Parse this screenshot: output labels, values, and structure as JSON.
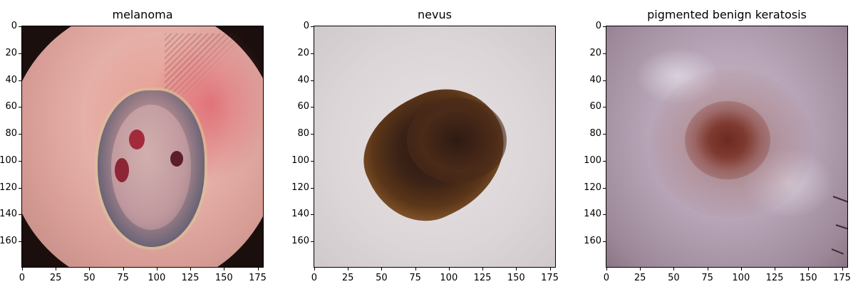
{
  "panels": [
    {
      "title": "melanoma",
      "image": "melanoma-dermoscopy-image",
      "yticks": [
        "0",
        "20",
        "40",
        "60",
        "80",
        "100",
        "120",
        "140",
        "160"
      ],
      "xticks": [
        "0",
        "25",
        "50",
        "75",
        "100",
        "125",
        "150",
        "175"
      ]
    },
    {
      "title": "nevus",
      "image": "nevus-dermoscopy-image",
      "yticks": [
        "0",
        "20",
        "40",
        "60",
        "80",
        "100",
        "120",
        "140",
        "160"
      ],
      "xticks": [
        "0",
        "25",
        "50",
        "75",
        "100",
        "125",
        "150",
        "175"
      ]
    },
    {
      "title": "pigmented benign keratosis",
      "image": "pigmented-benign-keratosis-dermoscopy-image",
      "yticks": [
        "0",
        "20",
        "40",
        "60",
        "80",
        "100",
        "120",
        "140",
        "160"
      ],
      "xticks": [
        "0",
        "25",
        "50",
        "75",
        "100",
        "125",
        "150",
        "175"
      ]
    }
  ],
  "axis_range": {
    "x": [
      0,
      179
    ],
    "y": [
      0,
      179
    ]
  }
}
